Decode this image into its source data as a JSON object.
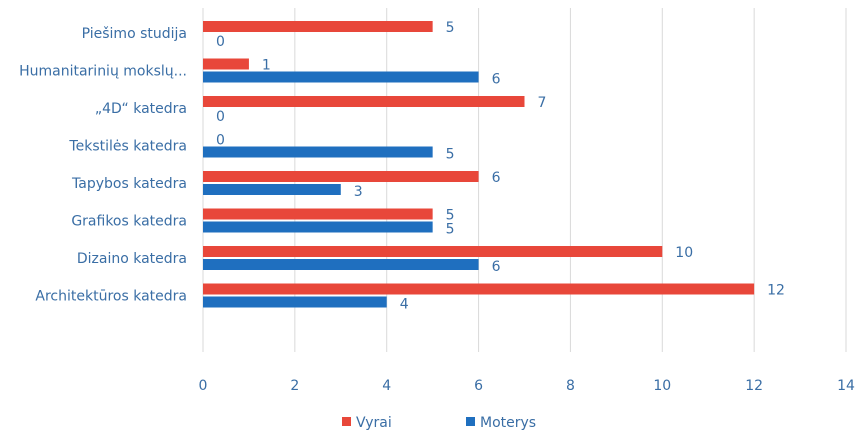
{
  "chart_data": {
    "type": "bar",
    "orientation": "horizontal",
    "categories": [
      "Piešimo studija",
      "Humanitarinių mokslų...",
      "„4D“ katedra",
      "Tekstilės katedra",
      "Tapybos katedra",
      "Grafikos katedra",
      "Dizaino katedra",
      "Architektūros katedra"
    ],
    "series": [
      {
        "name": "Vyrai",
        "color": "#e8473a",
        "values": [
          5,
          1,
          7,
          0,
          6,
          5,
          10,
          12
        ]
      },
      {
        "name": "Moterys",
        "color": "#1f6fbf",
        "values": [
          0,
          6,
          0,
          5,
          3,
          5,
          6,
          4
        ]
      }
    ],
    "xlim": [
      0,
      14
    ],
    "xticks": [
      0,
      2,
      4,
      6,
      8,
      10,
      12,
      14
    ],
    "grid": true,
    "legend_position": "bottom"
  }
}
